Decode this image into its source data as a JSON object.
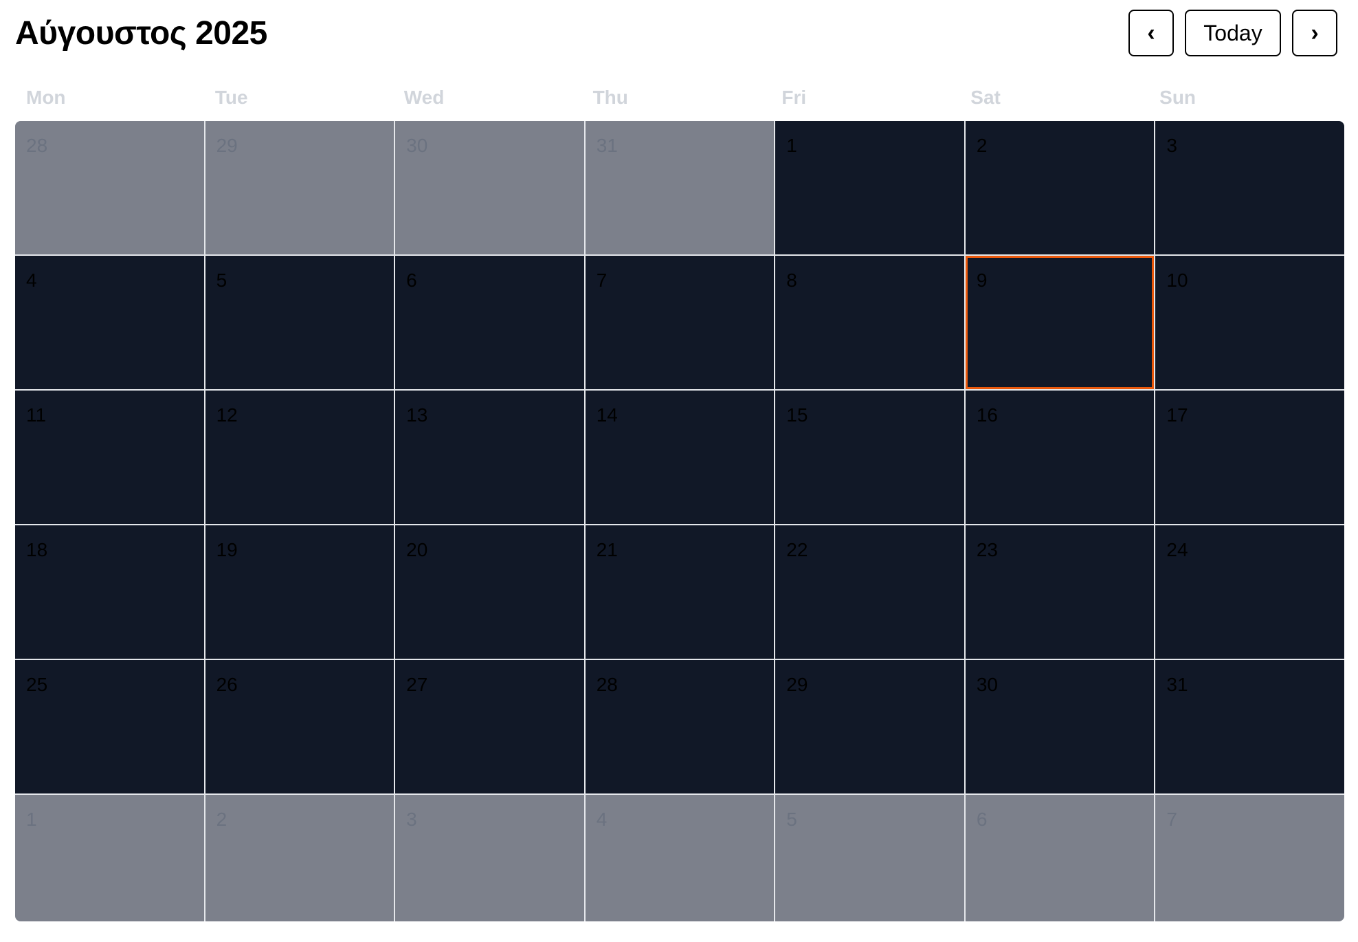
{
  "header": {
    "title": "Αύγουστος 2025",
    "prev_label": "‹",
    "today_label": "Today",
    "next_label": "›"
  },
  "weekdays": [
    "Mon",
    "Tue",
    "Wed",
    "Thu",
    "Fri",
    "Sat",
    "Sun"
  ],
  "colors": {
    "current_month_bg": "#111827",
    "outside_month_bg": "#7c808b",
    "today_outline": "#ea580c",
    "weekday_text": "#d1d5db"
  },
  "today_day": "9",
  "weeks": [
    [
      {
        "day": "28",
        "outside": true
      },
      {
        "day": "29",
        "outside": true
      },
      {
        "day": "30",
        "outside": true
      },
      {
        "day": "31",
        "outside": true
      },
      {
        "day": "1",
        "outside": false
      },
      {
        "day": "2",
        "outside": false
      },
      {
        "day": "3",
        "outside": false
      }
    ],
    [
      {
        "day": "4",
        "outside": false
      },
      {
        "day": "5",
        "outside": false
      },
      {
        "day": "6",
        "outside": false
      },
      {
        "day": "7",
        "outside": false
      },
      {
        "day": "8",
        "outside": false
      },
      {
        "day": "9",
        "outside": false,
        "today": true
      },
      {
        "day": "10",
        "outside": false
      }
    ],
    [
      {
        "day": "11",
        "outside": false
      },
      {
        "day": "12",
        "outside": false
      },
      {
        "day": "13",
        "outside": false
      },
      {
        "day": "14",
        "outside": false
      },
      {
        "day": "15",
        "outside": false
      },
      {
        "day": "16",
        "outside": false
      },
      {
        "day": "17",
        "outside": false
      }
    ],
    [
      {
        "day": "18",
        "outside": false
      },
      {
        "day": "19",
        "outside": false
      },
      {
        "day": "20",
        "outside": false
      },
      {
        "day": "21",
        "outside": false
      },
      {
        "day": "22",
        "outside": false
      },
      {
        "day": "23",
        "outside": false
      },
      {
        "day": "24",
        "outside": false
      }
    ],
    [
      {
        "day": "25",
        "outside": false
      },
      {
        "day": "26",
        "outside": false
      },
      {
        "day": "27",
        "outside": false
      },
      {
        "day": "28",
        "outside": false
      },
      {
        "day": "29",
        "outside": false
      },
      {
        "day": "30",
        "outside": false
      },
      {
        "day": "31",
        "outside": false
      }
    ],
    [
      {
        "day": "1",
        "outside": true
      },
      {
        "day": "2",
        "outside": true
      },
      {
        "day": "3",
        "outside": true
      },
      {
        "day": "4",
        "outside": true
      },
      {
        "day": "5",
        "outside": true
      },
      {
        "day": "6",
        "outside": true
      },
      {
        "day": "7",
        "outside": true
      }
    ]
  ]
}
